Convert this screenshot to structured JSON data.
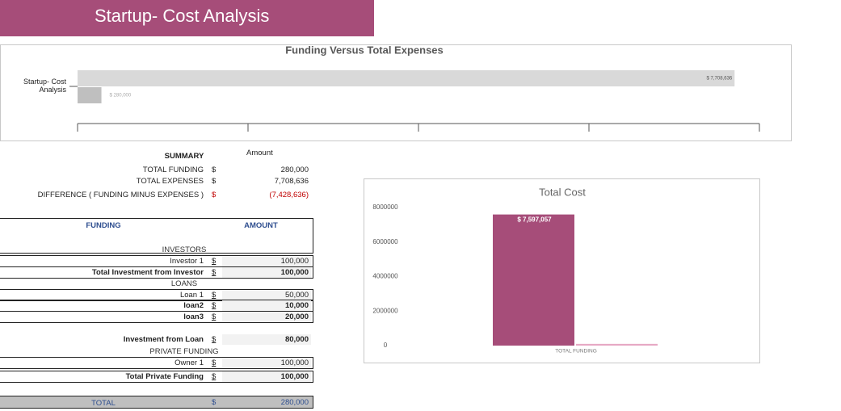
{
  "header": {
    "title": "Startup- Cost Analysis"
  },
  "chart_data": [
    {
      "type": "hbar",
      "title": "Funding Versus Total Expenses",
      "categories": [
        "Startup- Cost Analysis"
      ],
      "series": [
        {
          "color": "#d9d9d9",
          "values": [
            7708636
          ],
          "value_labels": [
            "$ 7,708,636"
          ]
        },
        {
          "color": "#bfbfbf",
          "values": [
            280000
          ],
          "value_labels": [
            "$ 280,000"
          ]
        }
      ],
      "xlim": [
        0,
        8000000
      ],
      "xticks": [
        0,
        2000000,
        4000000,
        6000000,
        8000000
      ]
    },
    {
      "type": "bar",
      "title": "Total Cost",
      "categories": [
        "TOTAL FUNDING"
      ],
      "series": [
        {
          "color": "#a64d79",
          "values": [
            7597057
          ],
          "value_labels": [
            "$ 7,597,057"
          ]
        },
        {
          "color": "#e6a9c4",
          "values": [
            100000
          ]
        }
      ],
      "ylim": [
        0,
        8000000
      ],
      "yticks": [
        0,
        2000000,
        4000000,
        6000000,
        8000000
      ]
    }
  ],
  "summary": {
    "title": "SUMMARY",
    "amount_header": "Amount",
    "rows": [
      {
        "label": "TOTAL FUNDING",
        "currency": "$",
        "amount": "280,000"
      },
      {
        "label": "TOTAL EXPENSES",
        "currency": "$",
        "amount": "7,708,636"
      },
      {
        "label": "DIFFERENCE  ( FUNDING MINUS EXPENSES )",
        "currency": "$",
        "amount": "(7,428,636)"
      }
    ]
  },
  "funding_table": {
    "headers": [
      "FUNDING",
      "AMOUNT"
    ],
    "rows": [
      {
        "label": "INVESTORS"
      },
      {
        "label": "Investor 1",
        "currency": "$",
        "amount": "100,000"
      },
      {
        "label": "Total Investment from Investor",
        "currency": "$",
        "amount": "100,000"
      },
      {
        "label": "LOANS"
      },
      {
        "label": "Loan 1",
        "currency": "$",
        "amount": "50,000"
      },
      {
        "label": "loan2",
        "currency": "$",
        "amount": "10,000"
      },
      {
        "label": "loan3",
        "currency": "$",
        "amount": "20,000"
      },
      {
        "label": "Investment from Loan",
        "currency": "$",
        "amount": "80,000"
      },
      {
        "label": "PRIVATE FUNDING"
      },
      {
        "label": "Owner 1",
        "currency": "$",
        "amount": "100,000"
      },
      {
        "label": "Total Private Funding",
        "currency": "$",
        "amount": "100,000"
      }
    ],
    "total": {
      "label": "TOTAL",
      "currency": "$",
      "amount": "280,000"
    }
  }
}
